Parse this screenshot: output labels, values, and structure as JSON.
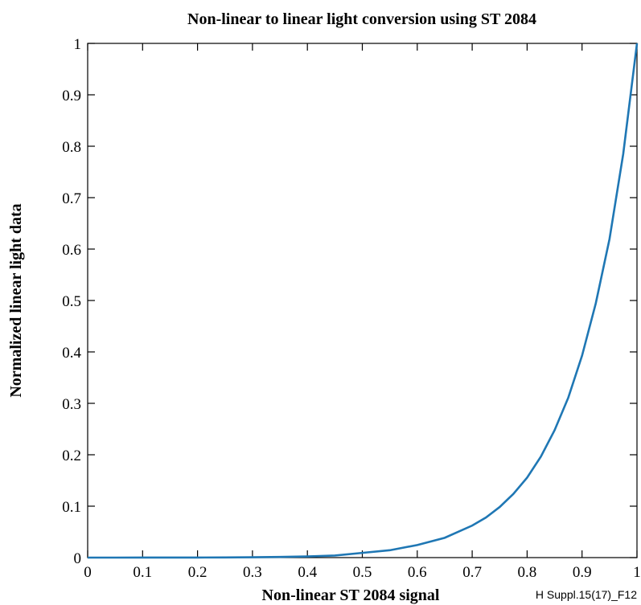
{
  "chart_data": {
    "type": "line",
    "title": "Non-linear to linear light conversion using ST 2084",
    "xlabel": "Non-linear ST 2084 signal",
    "ylabel": "Normalized linear light data",
    "xlim": [
      0,
      1
    ],
    "ylim": [
      0,
      1
    ],
    "x_ticks": [
      "0",
      "0.1",
      "0.2",
      "0.3",
      "0.4",
      "0.5",
      "0.6",
      "0.7",
      "0.8",
      "0.9",
      "1"
    ],
    "y_ticks": [
      "0",
      "0.1",
      "0.2",
      "0.3",
      "0.4",
      "0.5",
      "0.6",
      "0.7",
      "0.8",
      "0.9",
      "1"
    ],
    "grid": false,
    "legend": "none",
    "series": [
      {
        "color": "#1f77b4",
        "x": [
          0,
          0.05,
          0.1,
          0.15,
          0.2,
          0.25,
          0.3,
          0.35,
          0.4,
          0.45,
          0.5,
          0.55,
          0.6,
          0.65,
          0.7,
          0.725,
          0.75,
          0.775,
          0.8,
          0.825,
          0.85,
          0.875,
          0.9,
          0.925,
          0.95,
          0.975,
          1.0
        ],
        "y": [
          0,
          1e-05,
          3e-05,
          7e-05,
          0.00016,
          0.0003,
          0.00062,
          0.0012,
          0.0022,
          0.004,
          0.0092,
          0.0143,
          0.0244,
          0.0385,
          0.0623,
          0.0779,
          0.0983,
          0.1239,
          0.1555,
          0.1963,
          0.2477,
          0.3112,
          0.3927,
          0.4944,
          0.6196,
          0.7853,
          1.0
        ]
      }
    ]
  },
  "figure_id": "H Suppl.15(17)_F12"
}
